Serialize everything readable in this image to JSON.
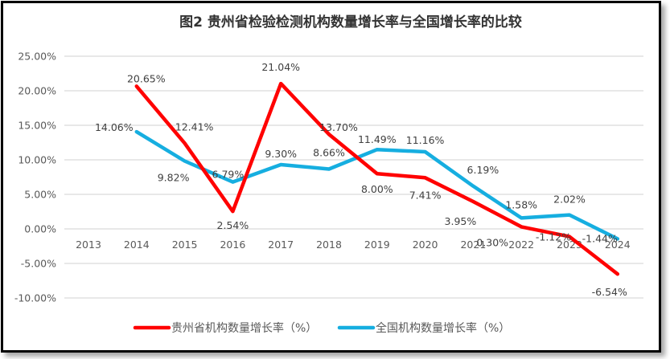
{
  "chart_data": {
    "type": "line",
    "title": "图2 贵州省检验检测机构数量增长率与全国增长率的比较",
    "xlabel": "",
    "ylabel": "",
    "categories": [
      "2013",
      "2014",
      "2015",
      "2016",
      "2017",
      "2018",
      "2019",
      "2020",
      "2021",
      "2022",
      "2023",
      "2024"
    ],
    "ylim": [
      -10,
      25
    ],
    "yticks": [
      25,
      20,
      15,
      10,
      5,
      0,
      -5,
      -10
    ],
    "ytick_labels": [
      "25.00%",
      "20.00%",
      "15.00%",
      "10.00%",
      "5.00%",
      "0.00%",
      "-5.00%",
      "-10.00%"
    ],
    "grid": true,
    "legend_position": "bottom",
    "series": [
      {
        "name": "贵州省机构数量增长率（%）",
        "color": "#ff0000",
        "values": [
          null,
          20.65,
          12.41,
          2.54,
          21.04,
          13.7,
          8.0,
          7.41,
          3.95,
          0.3,
          -1.12,
          -6.54
        ],
        "labels": [
          null,
          "20.65%",
          "12.41%",
          "2.54%",
          "21.04%",
          "13.70%",
          "8.00%",
          "7.41%",
          "3.95%",
          "0.30%",
          "-1.12%",
          "-6.54%"
        ]
      },
      {
        "name": "全国机构数量增长率（%）",
        "color": "#16aee0",
        "values": [
          null,
          14.06,
          9.82,
          6.79,
          9.3,
          8.66,
          11.49,
          11.16,
          6.19,
          1.58,
          2.02,
          -1.44
        ],
        "labels": [
          null,
          "14.06%",
          "9.82%",
          "6.79%",
          "9.30%",
          "8.66%",
          "11.49%",
          "11.16%",
          "6.19%",
          "1.58%",
          "2.02%",
          "-1.44%"
        ]
      }
    ]
  }
}
